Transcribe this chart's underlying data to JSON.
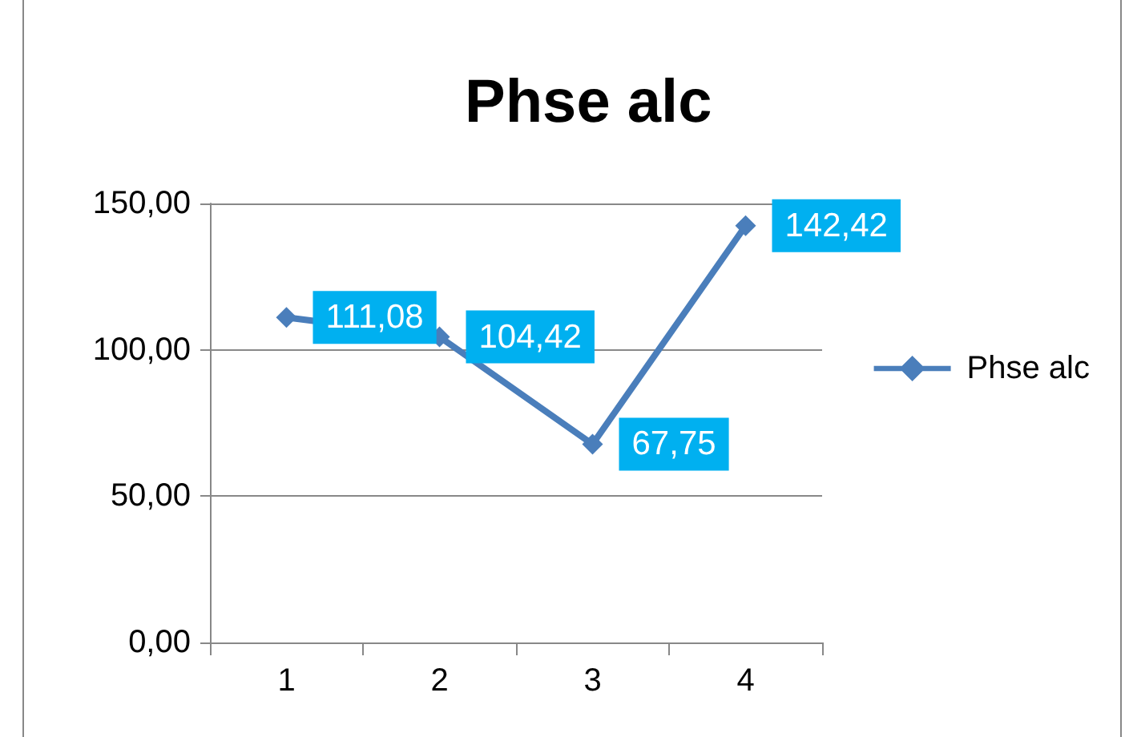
{
  "chart_data": {
    "type": "line",
    "title": "Phse alc",
    "categories": [
      "1",
      "2",
      "3",
      "4"
    ],
    "series": [
      {
        "name": "Phse alc",
        "color": "#4a7ebb",
        "values": [
          111.08,
          104.42,
          67.75,
          142.42
        ],
        "value_labels": [
          "111,08",
          "104,42",
          "67,75",
          "142,42"
        ]
      }
    ],
    "ylim": [
      0,
      150
    ],
    "yticks": [
      {
        "value": 0,
        "label": "0,00"
      },
      {
        "value": 50,
        "label": "50,00"
      },
      {
        "value": 100,
        "label": "100,00"
      },
      {
        "value": 150,
        "label": "150,00"
      }
    ],
    "grid": "y",
    "legend": "right",
    "marker": "diamond",
    "line_style": "solid"
  }
}
